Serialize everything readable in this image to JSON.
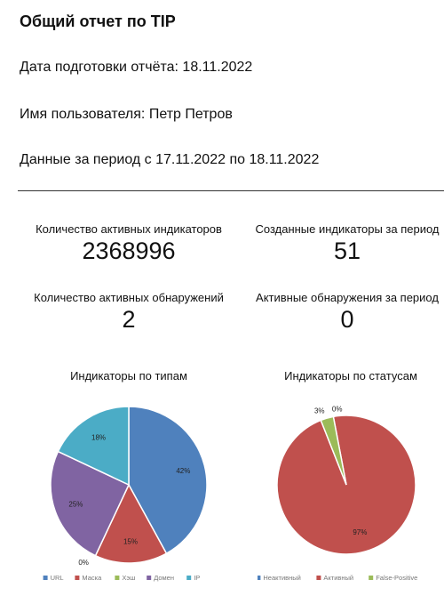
{
  "header": {
    "title": "Общий отчет по TIP",
    "prepared": "Дата подготовки отчёта: 18.11.2022",
    "user": "Имя пользователя: Петр Петров",
    "period": "Данные за период с 17.11.2022 по 18.11.2022"
  },
  "stats": [
    {
      "label": "Количество активных индикаторов",
      "value": "2368996"
    },
    {
      "label": "Созданные индикаторы за период",
      "value": "51"
    },
    {
      "label": "Количество активных обнаружений",
      "value": "2"
    },
    {
      "label": "Активные обнаружения за период",
      "value": "0"
    }
  ],
  "charts": {
    "types": {
      "title": "Индикаторы по типам",
      "legend": [
        "URL",
        "Маска",
        "Хэш",
        "Домен",
        "IP"
      ],
      "colors": [
        "#4f81bd",
        "#c0504d",
        "#9bbb59",
        "#8064a2",
        "#4bacc6"
      ]
    },
    "statuses": {
      "title": "Индикаторы по статусам",
      "legend": [
        "Неактивный",
        "Активный",
        "False-Positive"
      ],
      "colors": [
        "#4f81bd",
        "#c0504d",
        "#9bbb59"
      ]
    }
  },
  "chart_data": [
    {
      "type": "pie",
      "title": "Индикаторы по типам",
      "categories": [
        "URL",
        "Маска",
        "Хэш",
        "Домен",
        "IP"
      ],
      "values": [
        42,
        15,
        0,
        25,
        18
      ],
      "labels": [
        "42%",
        "15%",
        "0%",
        "25%",
        "18%"
      ]
    },
    {
      "type": "pie",
      "title": "Индикаторы по статусам",
      "categories": [
        "Неактивный",
        "Активный",
        "False-Positive"
      ],
      "values": [
        0,
        97,
        3
      ],
      "labels": [
        "0%",
        "97%",
        "3%"
      ]
    }
  ]
}
